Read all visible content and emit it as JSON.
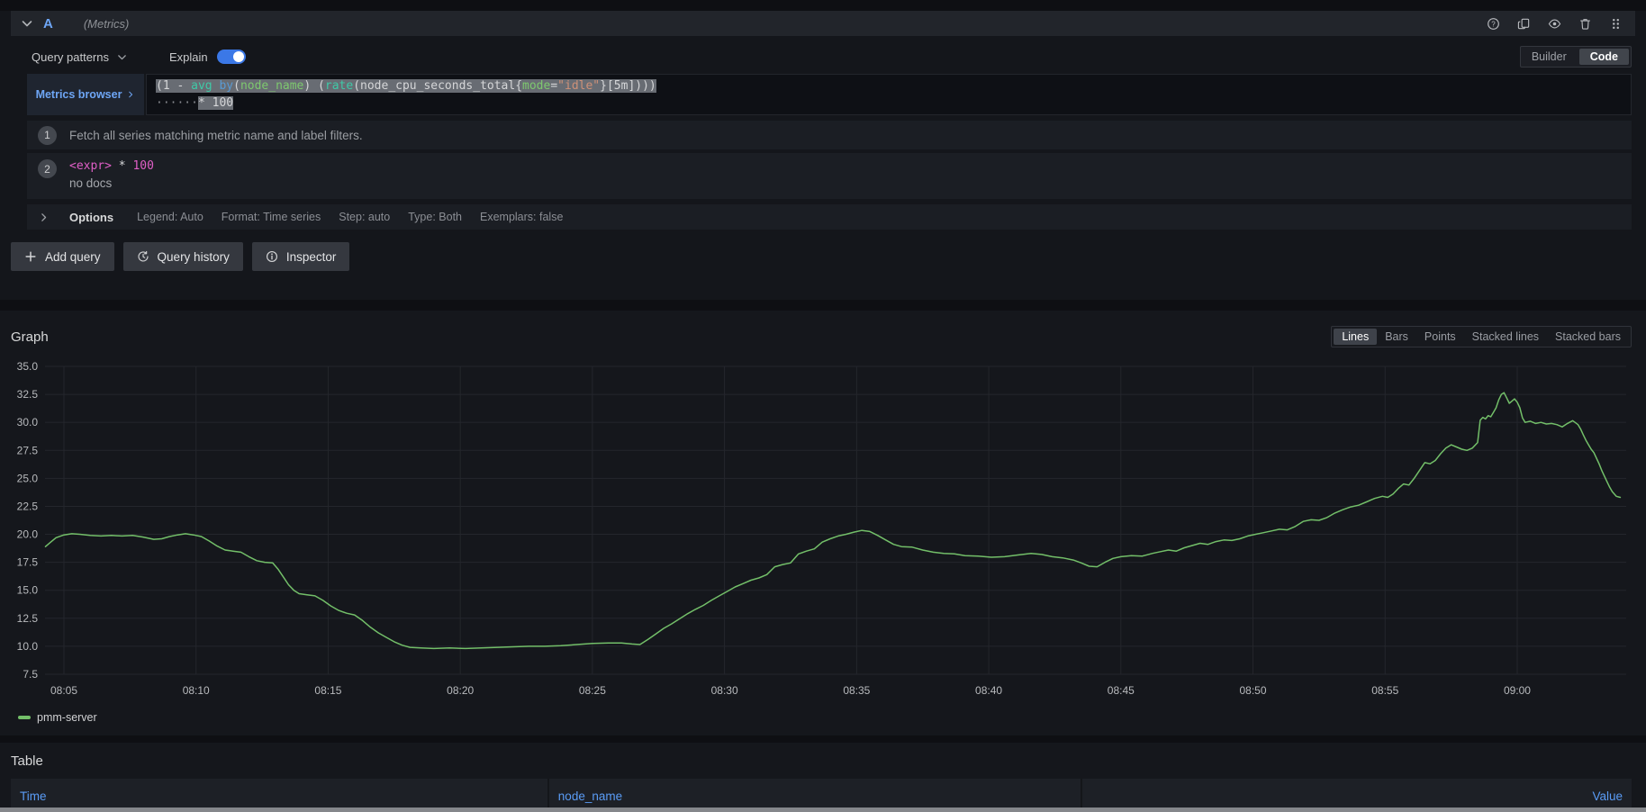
{
  "colors": {
    "accent_blue": "#6ea6f5",
    "toggle_blue": "#3b78e7",
    "line_green": "#73bf69",
    "selection_gray": "#686c73",
    "explain_pink": "#e05fc7",
    "table_header_blue": "#5a9cf6"
  },
  "query_header": {
    "collapse_icon": "chevron-down",
    "ref_id": "A",
    "datasource_hint": "(Metrics)",
    "action_icons": [
      {
        "name": "help-icon",
        "glyph": "help"
      },
      {
        "name": "duplicate-icon",
        "glyph": "duplicate"
      },
      {
        "name": "eye-icon",
        "glyph": "eye"
      },
      {
        "name": "trash-icon",
        "glyph": "trash"
      },
      {
        "name": "drag-handle-icon",
        "glyph": "grip"
      }
    ]
  },
  "toolbar": {
    "query_patterns_label": "Query patterns",
    "query_patterns_icon": "chevron-down",
    "explain_label": "Explain",
    "explain_on": true,
    "editor_mode": {
      "options": [
        "Builder",
        "Code"
      ],
      "selected": "Code"
    }
  },
  "editor": {
    "metrics_browser_label": "Metrics browser",
    "metrics_browser_icon": "chevron-right",
    "code_lines": [
      {
        "tokens": [
          {
            "t": "(1 - ",
            "c": "plain",
            "sel": true
          },
          {
            "t": "avg ",
            "c": "fn",
            "sel": true
          },
          {
            "t": "by",
            "c": "kw",
            "sel": true
          },
          {
            "t": "(",
            "c": "plain",
            "sel": true
          },
          {
            "t": "node_name",
            "c": "lbl",
            "sel": true
          },
          {
            "t": ") (",
            "c": "plain",
            "sel": true
          },
          {
            "t": "rate",
            "c": "fn",
            "sel": true
          },
          {
            "t": "(node_cpu_seconds_total{",
            "c": "plain",
            "sel": true
          },
          {
            "t": "mode",
            "c": "lbl",
            "sel": true
          },
          {
            "t": "=",
            "c": "plain",
            "sel": true
          },
          {
            "t": "\"idle\"",
            "c": "str",
            "sel": true
          },
          {
            "t": "}[5m])))",
            "c": "plain",
            "sel": true
          }
        ]
      },
      {
        "tokens": [
          {
            "t": "······",
            "c": "ws",
            "sel": false
          },
          {
            "t": "* 100",
            "c": "plain",
            "sel": true
          }
        ]
      }
    ]
  },
  "explain": {
    "steps": [
      {
        "number": "1",
        "text": "Fetch all series matching metric name and label filters."
      },
      {
        "number": "2",
        "code_tokens": [
          {
            "t": "<expr>",
            "c": "pink"
          },
          {
            "t": " * ",
            "c": "plain"
          },
          {
            "t": "100",
            "c": "pink"
          }
        ],
        "docs": "no docs"
      }
    ]
  },
  "options_row": {
    "expander_icon": "chevron-right",
    "label": "Options",
    "meta": [
      "Legend: Auto",
      "Format: Time series",
      "Step: auto",
      "Type: Both",
      "Exemplars: false"
    ]
  },
  "action_buttons": [
    {
      "name": "add-query-button",
      "icon": "plus",
      "label": "Add query"
    },
    {
      "name": "query-history-button",
      "icon": "history",
      "label": "Query history"
    },
    {
      "name": "inspector-button",
      "icon": "info",
      "label": "Inspector"
    }
  ],
  "graph": {
    "title": "Graph",
    "display_modes": {
      "options": [
        "Lines",
        "Bars",
        "Points",
        "Stacked lines",
        "Stacked bars"
      ],
      "selected": "Lines"
    },
    "legend": [
      {
        "label": "pmm-server",
        "color": "#73bf69"
      }
    ]
  },
  "chart_data": {
    "type": "line",
    "title": "Graph",
    "xlabel": "time",
    "ylabel": "",
    "grid": true,
    "legend_position": "bottom-left",
    "y_axis": {
      "ticks": [
        35.0,
        32.5,
        30.0,
        27.5,
        25.0,
        22.5,
        20.0,
        17.5,
        15.0,
        12.5,
        10.0,
        7.5
      ],
      "range": [
        7.0,
        35.6
      ]
    },
    "x_axis": {
      "unit": "minutes-after-08:00",
      "range_minutes": [
        4.3,
        63.9
      ],
      "ticks": [
        {
          "minutes": 5,
          "label": "08:05"
        },
        {
          "minutes": 10,
          "label": "08:10"
        },
        {
          "minutes": 15,
          "label": "08:15"
        },
        {
          "minutes": 20,
          "label": "08:20"
        },
        {
          "minutes": 25,
          "label": "08:25"
        },
        {
          "minutes": 30,
          "label": "08:30"
        },
        {
          "minutes": 35,
          "label": "08:35"
        },
        {
          "minutes": 40,
          "label": "08:40"
        },
        {
          "minutes": 45,
          "label": "08:45"
        },
        {
          "minutes": 50,
          "label": "08:50"
        },
        {
          "minutes": 55,
          "label": "08:55"
        },
        {
          "minutes": 60,
          "label": "09:00"
        }
      ]
    },
    "series": [
      {
        "name": "pmm-server",
        "color": "#73bf69",
        "points": [
          [
            4.3,
            18.9
          ],
          [
            4.5,
            19.3
          ],
          [
            4.7,
            19.7
          ],
          [
            5.0,
            19.95
          ],
          [
            5.3,
            20.05
          ],
          [
            5.6,
            20.0
          ],
          [
            6.0,
            19.9
          ],
          [
            6.4,
            19.85
          ],
          [
            6.8,
            19.9
          ],
          [
            7.2,
            19.85
          ],
          [
            7.6,
            19.9
          ],
          [
            8.0,
            19.75
          ],
          [
            8.4,
            19.55
          ],
          [
            8.7,
            19.6
          ],
          [
            9.0,
            19.8
          ],
          [
            9.3,
            19.95
          ],
          [
            9.6,
            20.05
          ],
          [
            9.9,
            19.95
          ],
          [
            10.2,
            19.8
          ],
          [
            10.5,
            19.4
          ],
          [
            10.8,
            18.95
          ],
          [
            11.1,
            18.6
          ],
          [
            11.4,
            18.5
          ],
          [
            11.7,
            18.4
          ],
          [
            12.0,
            18.0
          ],
          [
            12.3,
            17.65
          ],
          [
            12.6,
            17.5
          ],
          [
            12.9,
            17.45
          ],
          [
            13.1,
            16.9
          ],
          [
            13.3,
            16.2
          ],
          [
            13.5,
            15.5
          ],
          [
            13.7,
            15.0
          ],
          [
            13.9,
            14.7
          ],
          [
            14.2,
            14.6
          ],
          [
            14.5,
            14.5
          ],
          [
            14.8,
            14.1
          ],
          [
            15.1,
            13.6
          ],
          [
            15.4,
            13.2
          ],
          [
            15.7,
            12.95
          ],
          [
            16.0,
            12.8
          ],
          [
            16.3,
            12.3
          ],
          [
            16.6,
            11.7
          ],
          [
            16.9,
            11.2
          ],
          [
            17.2,
            10.8
          ],
          [
            17.5,
            10.4
          ],
          [
            17.8,
            10.1
          ],
          [
            18.1,
            9.9
          ],
          [
            18.5,
            9.85
          ],
          [
            19.0,
            9.8
          ],
          [
            19.6,
            9.85
          ],
          [
            20.2,
            9.8
          ],
          [
            20.8,
            9.85
          ],
          [
            21.4,
            9.9
          ],
          [
            22.0,
            9.95
          ],
          [
            22.6,
            10.0
          ],
          [
            23.2,
            10.0
          ],
          [
            23.8,
            10.05
          ],
          [
            24.4,
            10.15
          ],
          [
            25.0,
            10.25
          ],
          [
            25.6,
            10.3
          ],
          [
            26.1,
            10.3
          ],
          [
            26.5,
            10.2
          ],
          [
            26.8,
            10.15
          ],
          [
            27.1,
            10.6
          ],
          [
            27.4,
            11.1
          ],
          [
            27.7,
            11.6
          ],
          [
            28.0,
            12.0
          ],
          [
            28.3,
            12.45
          ],
          [
            28.6,
            12.9
          ],
          [
            28.9,
            13.3
          ],
          [
            29.2,
            13.65
          ],
          [
            29.5,
            14.1
          ],
          [
            29.8,
            14.5
          ],
          [
            30.1,
            14.9
          ],
          [
            30.4,
            15.3
          ],
          [
            30.7,
            15.6
          ],
          [
            31.0,
            15.9
          ],
          [
            31.3,
            16.1
          ],
          [
            31.6,
            16.4
          ],
          [
            31.9,
            17.1
          ],
          [
            32.2,
            17.3
          ],
          [
            32.5,
            17.45
          ],
          [
            32.8,
            18.25
          ],
          [
            33.1,
            18.5
          ],
          [
            33.4,
            18.7
          ],
          [
            33.7,
            19.3
          ],
          [
            34.0,
            19.6
          ],
          [
            34.3,
            19.85
          ],
          [
            34.6,
            20.0
          ],
          [
            34.9,
            20.2
          ],
          [
            35.2,
            20.35
          ],
          [
            35.5,
            20.25
          ],
          [
            35.8,
            19.9
          ],
          [
            36.1,
            19.5
          ],
          [
            36.4,
            19.1
          ],
          [
            36.7,
            18.9
          ],
          [
            37.1,
            18.85
          ],
          [
            37.5,
            18.6
          ],
          [
            37.9,
            18.4
          ],
          [
            38.3,
            18.3
          ],
          [
            38.7,
            18.25
          ],
          [
            39.1,
            18.1
          ],
          [
            39.6,
            18.05
          ],
          [
            40.1,
            17.95
          ],
          [
            40.6,
            18.0
          ],
          [
            41.1,
            18.15
          ],
          [
            41.6,
            18.3
          ],
          [
            42.0,
            18.2
          ],
          [
            42.4,
            18.0
          ],
          [
            42.8,
            17.9
          ],
          [
            43.2,
            17.7
          ],
          [
            43.5,
            17.45
          ],
          [
            43.8,
            17.15
          ],
          [
            44.1,
            17.1
          ],
          [
            44.4,
            17.5
          ],
          [
            44.7,
            17.85
          ],
          [
            45.0,
            18.0
          ],
          [
            45.4,
            18.1
          ],
          [
            45.8,
            18.05
          ],
          [
            46.2,
            18.3
          ],
          [
            46.5,
            18.45
          ],
          [
            46.8,
            18.6
          ],
          [
            47.1,
            18.5
          ],
          [
            47.4,
            18.8
          ],
          [
            47.7,
            19.0
          ],
          [
            48.0,
            19.2
          ],
          [
            48.3,
            19.1
          ],
          [
            48.6,
            19.35
          ],
          [
            48.9,
            19.5
          ],
          [
            49.2,
            19.45
          ],
          [
            49.5,
            19.6
          ],
          [
            49.8,
            19.85
          ],
          [
            50.1,
            20.0
          ],
          [
            50.4,
            20.15
          ],
          [
            50.7,
            20.3
          ],
          [
            51.0,
            20.45
          ],
          [
            51.3,
            20.4
          ],
          [
            51.6,
            20.7
          ],
          [
            51.9,
            21.15
          ],
          [
            52.2,
            21.3
          ],
          [
            52.5,
            21.25
          ],
          [
            52.8,
            21.5
          ],
          [
            53.1,
            21.9
          ],
          [
            53.4,
            22.2
          ],
          [
            53.7,
            22.45
          ],
          [
            54.0,
            22.6
          ],
          [
            54.3,
            22.9
          ],
          [
            54.6,
            23.2
          ],
          [
            54.9,
            23.4
          ],
          [
            55.1,
            23.3
          ],
          [
            55.3,
            23.6
          ],
          [
            55.5,
            24.1
          ],
          [
            55.7,
            24.5
          ],
          [
            55.9,
            24.4
          ],
          [
            56.1,
            25.0
          ],
          [
            56.3,
            25.7
          ],
          [
            56.5,
            26.4
          ],
          [
            56.7,
            26.3
          ],
          [
            56.9,
            26.6
          ],
          [
            57.1,
            27.2
          ],
          [
            57.3,
            27.7
          ],
          [
            57.5,
            28.0
          ],
          [
            57.7,
            27.8
          ],
          [
            57.9,
            27.6
          ],
          [
            58.1,
            27.5
          ],
          [
            58.3,
            27.7
          ],
          [
            58.5,
            28.2
          ],
          [
            58.6,
            30.2
          ],
          [
            58.7,
            30.45
          ],
          [
            58.8,
            30.3
          ],
          [
            58.9,
            30.6
          ],
          [
            59.0,
            30.5
          ],
          [
            59.1,
            30.9
          ],
          [
            59.2,
            31.3
          ],
          [
            59.3,
            32.0
          ],
          [
            59.4,
            32.5
          ],
          [
            59.5,
            32.65
          ],
          [
            59.6,
            32.2
          ],
          [
            59.7,
            31.7
          ],
          [
            59.8,
            31.9
          ],
          [
            59.9,
            32.1
          ],
          [
            60.0,
            31.8
          ],
          [
            60.1,
            31.3
          ],
          [
            60.2,
            30.4
          ],
          [
            60.3,
            30.0
          ],
          [
            60.5,
            30.1
          ],
          [
            60.7,
            29.9
          ],
          [
            60.9,
            30.0
          ],
          [
            61.1,
            29.85
          ],
          [
            61.3,
            29.9
          ],
          [
            61.5,
            29.8
          ],
          [
            61.7,
            29.6
          ],
          [
            61.9,
            29.9
          ],
          [
            62.1,
            30.15
          ],
          [
            62.3,
            29.8
          ],
          [
            62.4,
            29.4
          ],
          [
            62.5,
            28.9
          ],
          [
            62.6,
            28.4
          ],
          [
            62.7,
            28.0
          ],
          [
            62.8,
            27.6
          ],
          [
            62.9,
            27.3
          ],
          [
            63.0,
            26.8
          ],
          [
            63.1,
            26.3
          ],
          [
            63.2,
            25.7
          ],
          [
            63.3,
            25.2
          ],
          [
            63.4,
            24.7
          ],
          [
            63.5,
            24.2
          ],
          [
            63.6,
            23.8
          ],
          [
            63.75,
            23.4
          ],
          [
            63.9,
            23.3
          ]
        ]
      }
    ]
  },
  "table": {
    "title": "Table",
    "columns": [
      {
        "label": "Time",
        "align": "left"
      },
      {
        "label": "node_name",
        "align": "left"
      },
      {
        "label": "Value",
        "align": "right"
      }
    ]
  }
}
